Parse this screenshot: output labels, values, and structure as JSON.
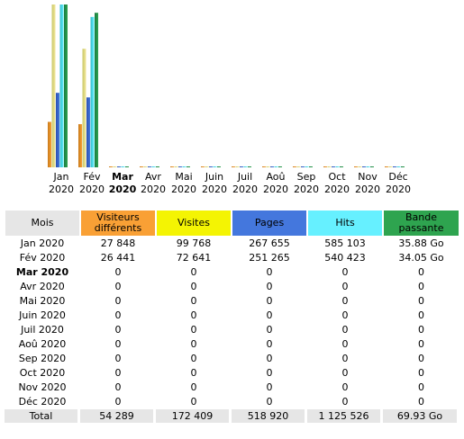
{
  "colors": {
    "visitors": "#f9a035",
    "visits": "#f4f403",
    "pages": "#4477dd",
    "hits": "#66f0ff",
    "bandwidth": "#2ea44f",
    "header_gray": "#e6e6e6"
  },
  "chart_data": {
    "type": "bar",
    "categories": [
      "Jan 2020",
      "Fév 2020",
      "Mar 2020",
      "Avr 2020",
      "Mai 2020",
      "Juin 2020",
      "Juil 2020",
      "Aoû 2020",
      "Sep 2020",
      "Oct 2020",
      "Nov 2020",
      "Déc 2020"
    ],
    "highlighted_category": "Mar 2020",
    "series": [
      {
        "name": "Visiteurs différents",
        "values": [
          27848,
          26441,
          0,
          0,
          0,
          0,
          0,
          0,
          0,
          0,
          0,
          0
        ]
      },
      {
        "name": "Visites",
        "values": [
          99768,
          72641,
          0,
          0,
          0,
          0,
          0,
          0,
          0,
          0,
          0,
          0
        ]
      },
      {
        "name": "Pages",
        "values": [
          267655,
          251265,
          0,
          0,
          0,
          0,
          0,
          0,
          0,
          0,
          0,
          0
        ]
      },
      {
        "name": "Hits",
        "values": [
          585103,
          540423,
          0,
          0,
          0,
          0,
          0,
          0,
          0,
          0,
          0,
          0
        ]
      },
      {
        "name": "Bande passante",
        "values": [
          35.88,
          34.05,
          0,
          0,
          0,
          0,
          0,
          0,
          0,
          0,
          0,
          0
        ]
      }
    ]
  },
  "table": {
    "headers": {
      "month": "Mois",
      "visitors": "Visiteurs différents",
      "visits": "Visites",
      "pages": "Pages",
      "hits": "Hits",
      "bandwidth": "Bande passante"
    },
    "rows": [
      {
        "month": "Jan 2020",
        "visitors": "27 848",
        "visits": "99 768",
        "pages": "267 655",
        "hits": "585 103",
        "bandwidth": "35.88 Go"
      },
      {
        "month": "Fév 2020",
        "visitors": "26 441",
        "visits": "72 641",
        "pages": "251 265",
        "hits": "540 423",
        "bandwidth": "34.05 Go"
      },
      {
        "month": "Mar 2020",
        "visitors": "0",
        "visits": "0",
        "pages": "0",
        "hits": "0",
        "bandwidth": "0"
      },
      {
        "month": "Avr 2020",
        "visitors": "0",
        "visits": "0",
        "pages": "0",
        "hits": "0",
        "bandwidth": "0"
      },
      {
        "month": "Mai 2020",
        "visitors": "0",
        "visits": "0",
        "pages": "0",
        "hits": "0",
        "bandwidth": "0"
      },
      {
        "month": "Juin 2020",
        "visitors": "0",
        "visits": "0",
        "pages": "0",
        "hits": "0",
        "bandwidth": "0"
      },
      {
        "month": "Juil 2020",
        "visitors": "0",
        "visits": "0",
        "pages": "0",
        "hits": "0",
        "bandwidth": "0"
      },
      {
        "month": "Aoû 2020",
        "visitors": "0",
        "visits": "0",
        "pages": "0",
        "hits": "0",
        "bandwidth": "0"
      },
      {
        "month": "Sep 2020",
        "visitors": "0",
        "visits": "0",
        "pages": "0",
        "hits": "0",
        "bandwidth": "0"
      },
      {
        "month": "Oct 2020",
        "visitors": "0",
        "visits": "0",
        "pages": "0",
        "hits": "0",
        "bandwidth": "0"
      },
      {
        "month": "Nov 2020",
        "visitors": "0",
        "visits": "0",
        "pages": "0",
        "hits": "0",
        "bandwidth": "0"
      },
      {
        "month": "Déc 2020",
        "visitors": "0",
        "visits": "0",
        "pages": "0",
        "hits": "0",
        "bandwidth": "0"
      }
    ],
    "total": {
      "month": "Total",
      "visitors": "54 289",
      "visits": "172 409",
      "pages": "518 920",
      "hits": "1 125 526",
      "bandwidth": "69.93 Go"
    }
  }
}
